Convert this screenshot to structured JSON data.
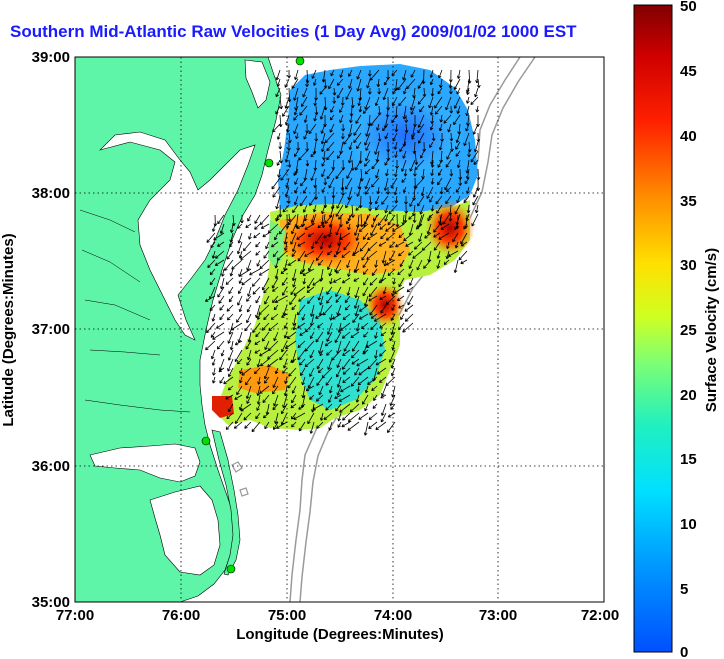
{
  "title": "Southern Mid-Atlantic Raw Velocities (1 Day Avg) 2009/01/02 1000 EST",
  "map": {
    "xlabel": "Longitude (Degrees:Minutes)",
    "ylabel": "Latitude (Degrees:Minutes)",
    "x_ticks": [
      "77:00",
      "76:00",
      "75:00",
      "74:00",
      "73:00",
      "72:00"
    ],
    "y_ticks": [
      "39:00",
      "38:00",
      "37:00",
      "36:00",
      "35:00"
    ],
    "lon_range": [
      -77,
      -72
    ],
    "lat_range": [
      35,
      39
    ],
    "grid": true,
    "land_color": "#5ef5a8",
    "water_color": "#ffffff"
  },
  "colorbar": {
    "label": "Surface Velocity (cm/s)",
    "ticks": [
      "50",
      "45",
      "40",
      "35",
      "30",
      "25",
      "20",
      "15",
      "10",
      "5",
      "0"
    ],
    "range": [
      0,
      50
    ],
    "colormap": "jet"
  },
  "chart_data": {
    "type": "heatmap",
    "title": "Southern Mid-Atlantic Raw Velocities (1 Day Avg) 2009/01/02 1000 EST",
    "xlabel": "Longitude (Degrees:Minutes)",
    "ylabel": "Latitude (Degrees:Minutes)",
    "xlim": [
      -77,
      -72
    ],
    "ylim": [
      35,
      39
    ],
    "value_label": "Surface Velocity (cm/s)",
    "value_range": [
      0,
      50
    ],
    "regions": [
      {
        "lon": -74.3,
        "lat": 38.5,
        "speed": 7
      },
      {
        "lon": -73.6,
        "lat": 37.7,
        "speed": 47
      },
      {
        "lon": -74.6,
        "lat": 37.6,
        "speed": 44
      },
      {
        "lon": -74.1,
        "lat": 37.0,
        "speed": 40
      },
      {
        "lon": -75.0,
        "lat": 37.2,
        "speed": 22
      },
      {
        "lon": -75.2,
        "lat": 36.6,
        "speed": 30
      },
      {
        "lon": -75.6,
        "lat": 36.5,
        "speed": 45
      },
      {
        "lon": -74.4,
        "lat": 36.6,
        "speed": 20
      }
    ]
  }
}
